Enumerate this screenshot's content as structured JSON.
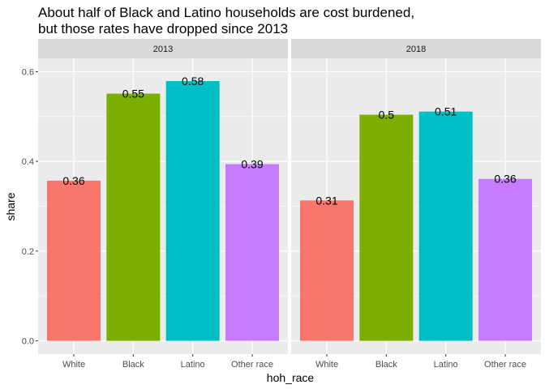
{
  "chart_data": {
    "type": "bar",
    "title": [
      "About half of Black and Latino households are cost burdened,",
      "but those rates have dropped since 2013"
    ],
    "xlabel": "hoh_race",
    "ylabel": "share",
    "ylim": [
      0,
      0.6
    ],
    "yticks": [
      0.0,
      0.2,
      0.4,
      0.6
    ],
    "ytick_labels": [
      "0.0",
      "0.2",
      "0.4",
      "0.6"
    ],
    "categories": [
      "White",
      "Black",
      "Latino",
      "Other race"
    ],
    "colors": [
      "#F8766D",
      "#7CAE00",
      "#00BFC4",
      "#C77CFF"
    ],
    "grid": true,
    "legend": "none",
    "panels": [
      {
        "label": "2013",
        "values": [
          0.357,
          0.551,
          0.579,
          0.394
        ],
        "value_labels": [
          "0.36",
          "0.55",
          "0.58",
          "0.39"
        ]
      },
      {
        "label": "2018",
        "values": [
          0.313,
          0.504,
          0.511,
          0.361
        ],
        "value_labels": [
          "0.31",
          "0.5",
          "0.51",
          "0.36"
        ]
      }
    ]
  }
}
